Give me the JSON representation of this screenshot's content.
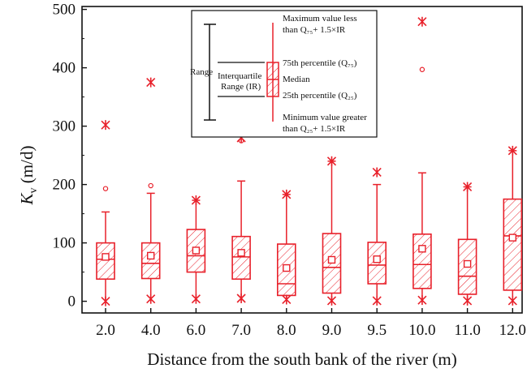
{
  "chart_data": {
    "type": "box",
    "xlabel": "Distance from the south bank of the river (m)",
    "ylabel_main": "K",
    "ylabel_sub": "v",
    "ylabel_unit": " (m/d)",
    "ylim": [
      -20,
      505
    ],
    "yticks": [
      0,
      100,
      200,
      300,
      400,
      500
    ],
    "grid": false,
    "color": "#e8202a",
    "categories": [
      "2.0",
      "4.0",
      "6.0",
      "7.0",
      "8.0",
      "9.0",
      "9.5",
      "10.0",
      "11.0",
      "12.0"
    ],
    "series": [
      {
        "category": "2.0",
        "min": 0,
        "q1": 38,
        "median": 72,
        "q3": 100,
        "whisker_high": 153,
        "mean": 76,
        "outliers": [
          193
        ],
        "max": 302
      },
      {
        "category": "4.0",
        "min": 4,
        "q1": 39,
        "median": 65,
        "q3": 100,
        "whisker_high": 185,
        "mean": 78,
        "outliers": [
          198
        ],
        "max": 375
      },
      {
        "category": "6.0",
        "min": 4,
        "q1": 50,
        "median": 78,
        "q3": 123,
        "whisker_high": 173,
        "mean": 87,
        "outliers": [],
        "max": 173
      },
      {
        "category": "7.0",
        "min": 5,
        "q1": 38,
        "median": 76,
        "q3": 111,
        "whisker_high": 206,
        "mean": 83,
        "outliers": [
          275
        ],
        "max": 280
      },
      {
        "category": "8.0",
        "min": 3,
        "q1": 10,
        "median": 30,
        "q3": 98,
        "whisker_high": 183,
        "mean": 57,
        "outliers": [],
        "max": 183
      },
      {
        "category": "9.0",
        "min": 1,
        "q1": 14,
        "median": 58,
        "q3": 116,
        "whisker_high": 240,
        "mean": 71,
        "outliers": [],
        "max": 240
      },
      {
        "category": "9.5",
        "min": 1,
        "q1": 30,
        "median": 62,
        "q3": 101,
        "whisker_high": 200,
        "mean": 72,
        "outliers": [],
        "max": 221
      },
      {
        "category": "10.0",
        "min": 2,
        "q1": 22,
        "median": 63,
        "q3": 115,
        "whisker_high": 220,
        "mean": 90,
        "outliers": [
          397
        ],
        "max": 479
      },
      {
        "category": "11.0",
        "min": 1,
        "q1": 12,
        "median": 43,
        "q3": 106,
        "whisker_high": 196,
        "mean": 64,
        "outliers": [],
        "max": 196
      },
      {
        "category": "12.0",
        "min": 1,
        "q1": 19,
        "median": 112,
        "q3": 175,
        "whisker_high": 258,
        "mean": 109,
        "outliers": [],
        "max": 258
      }
    ],
    "legend": {
      "range": "Range",
      "iqr_line1": "Interquartile",
      "iqr_line2": "Range (IR)",
      "max_line1": "Maximum value less",
      "max_line2": "than Q₇₅+ 1.5×IR",
      "p75": "75th percentile (Q₇₅)",
      "median": "Median",
      "p25": "25th percentile (Q₂₅)",
      "min_line1": "Minimum value greater",
      "min_line2": "than Q₂₅+ 1.5×IR"
    }
  }
}
